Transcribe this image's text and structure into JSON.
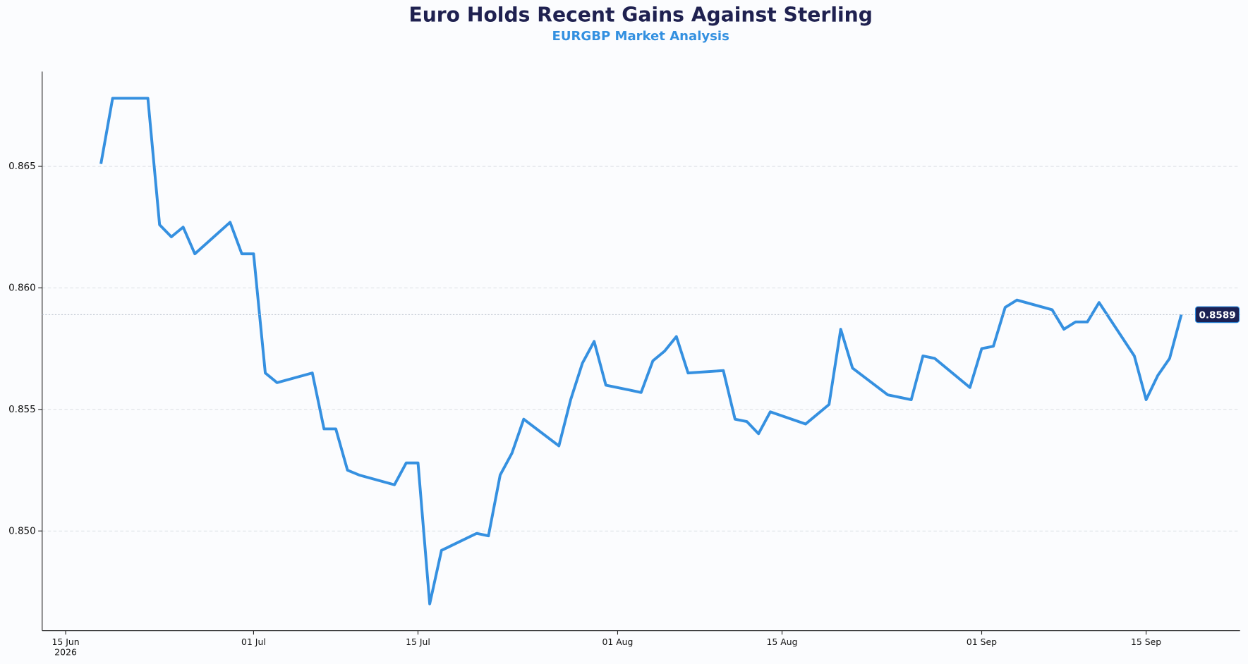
{
  "chart_data": {
    "type": "line",
    "title": "Euro Holds Recent Gains Against Sterling",
    "subtitle": "EURGBP Market Analysis",
    "x": [
      "2026-06-18",
      "2026-06-19",
      "2026-06-22",
      "2026-06-23",
      "2026-06-24",
      "2026-06-25",
      "2026-06-26",
      "2026-06-29",
      "2026-06-30",
      "2026-07-01",
      "2026-07-02",
      "2026-07-03",
      "2026-07-06",
      "2026-07-07",
      "2026-07-08",
      "2026-07-09",
      "2026-07-10",
      "2026-07-13",
      "2026-07-14",
      "2026-07-15",
      "2026-07-16",
      "2026-07-17",
      "2026-07-20",
      "2026-07-21",
      "2026-07-22",
      "2026-07-23",
      "2026-07-24",
      "2026-07-27",
      "2026-07-28",
      "2026-07-29",
      "2026-07-30",
      "2026-07-31",
      "2026-08-03",
      "2026-08-04",
      "2026-08-05",
      "2026-08-06",
      "2026-08-07",
      "2026-08-10",
      "2026-08-11",
      "2026-08-12",
      "2026-08-13",
      "2026-08-14",
      "2026-08-17",
      "2026-08-19",
      "2026-08-20",
      "2026-08-21",
      "2026-08-24",
      "2026-08-26",
      "2026-08-27",
      "2026-08-28",
      "2026-08-31",
      "2026-09-01",
      "2026-09-02",
      "2026-09-03",
      "2026-09-04",
      "2026-09-07",
      "2026-09-08",
      "2026-09-09",
      "2026-09-10",
      "2026-09-11",
      "2026-09-14",
      "2026-09-15",
      "2026-09-16",
      "2026-09-17",
      "2026-09-18"
    ],
    "series": [
      {
        "name": "EURGBP",
        "color": "#3590e0",
        "values": [
          0.8651,
          0.8678,
          0.8678,
          0.8626,
          0.8621,
          0.8625,
          0.8614,
          0.8627,
          0.8614,
          0.8614,
          0.8565,
          0.8561,
          0.8565,
          0.8542,
          0.8542,
          0.8525,
          0.8523,
          0.8519,
          0.8528,
          0.8528,
          0.847,
          0.8492,
          0.8499,
          0.8498,
          0.8523,
          0.8532,
          0.8546,
          0.8535,
          0.8554,
          0.8569,
          0.8578,
          0.856,
          0.8557,
          0.857,
          0.8574,
          0.858,
          0.8565,
          0.8566,
          0.8546,
          0.8545,
          0.854,
          0.8549,
          0.8544,
          0.8552,
          0.8583,
          0.8567,
          0.8556,
          0.8554,
          0.8572,
          0.8571,
          0.8559,
          0.8575,
          0.8576,
          0.8592,
          0.8595,
          0.8591,
          0.8583,
          0.8586,
          0.8586,
          0.8594,
          0.8572,
          0.8554,
          0.8564,
          0.8571,
          0.8589
        ]
      }
    ],
    "xlim": [
      "2026-06-13",
      "2026-09-23"
    ],
    "xticks": [
      {
        "value": "2026-06-15",
        "label": "15 Jun\n2026"
      },
      {
        "value": "2026-07-01",
        "label": "01 Jul"
      },
      {
        "value": "2026-07-15",
        "label": "15 Jul"
      },
      {
        "value": "2026-08-01",
        "label": "01 Aug"
      },
      {
        "value": "2026-08-15",
        "label": "15 Aug"
      },
      {
        "value": "2026-09-01",
        "label": "01 Sep"
      },
      {
        "value": "2026-09-15",
        "label": "15 Sep"
      }
    ],
    "ylim": [
      0.8459,
      0.8689
    ],
    "yticks": [
      {
        "value": 0.85,
        "label": "0.850"
      },
      0.855,
      {
        "value": 0.86,
        "label": "0.860"
      },
      0.865
    ],
    "grid": true
  }
}
